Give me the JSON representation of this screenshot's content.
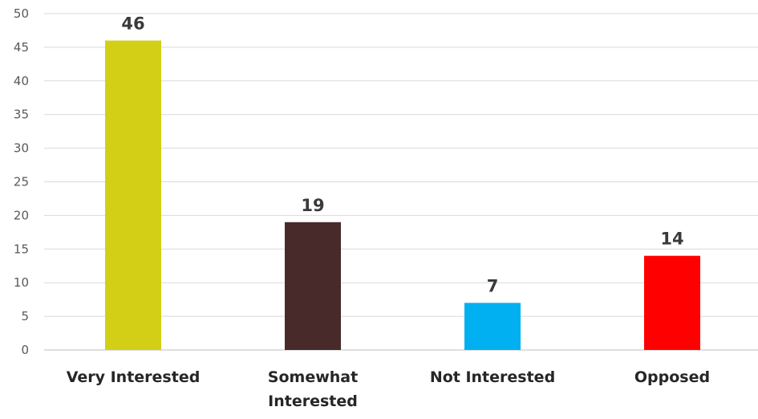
{
  "chart_data": {
    "type": "bar",
    "title": "",
    "xlabel": "",
    "ylabel": "",
    "categories": [
      "Very Interested",
      "Somewhat Interested",
      "Not Interested",
      "Opposed"
    ],
    "category_lines": [
      [
        "Very Interested"
      ],
      [
        "Somewhat",
        "Interested"
      ],
      [
        "Not Interested"
      ],
      [
        "Opposed"
      ]
    ],
    "values": [
      46,
      19,
      7,
      14
    ],
    "colors": [
      "#d2cf16",
      "#482a2b",
      "#00b0f0",
      "#ff0000"
    ],
    "ylim": [
      0,
      50
    ],
    "yticks": [
      0,
      5,
      10,
      15,
      20,
      25,
      30,
      35,
      40,
      45,
      50
    ],
    "grid": true,
    "legend": "none",
    "data_labels": true
  }
}
